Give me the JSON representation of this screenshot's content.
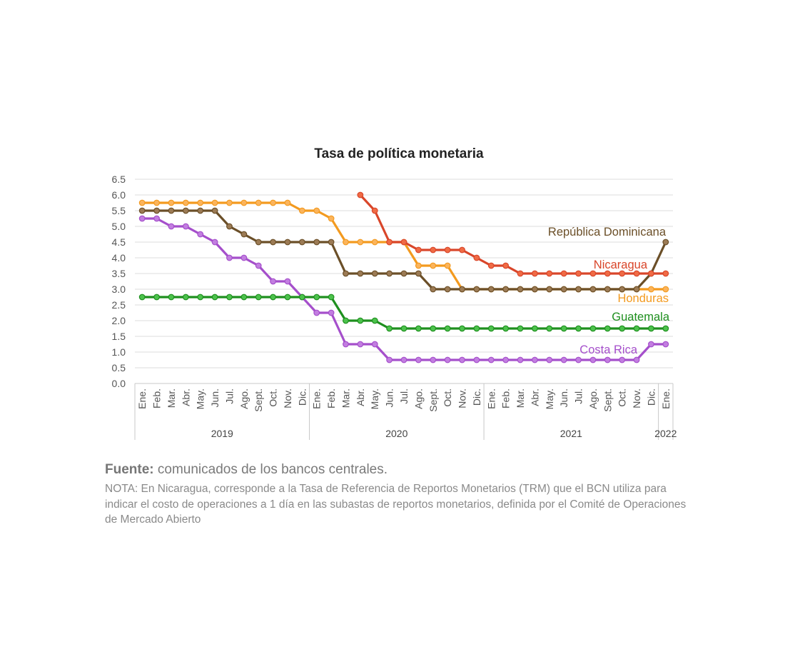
{
  "chart_data": {
    "type": "line",
    "title": "Tasa de política monetaria",
    "xlabel": "",
    "ylabel": "",
    "ylim": [
      0,
      6.5
    ],
    "yticks": [
      "0.0",
      "0.5",
      "1.0",
      "1.5",
      "2.0",
      "2.5",
      "3.0",
      "3.5",
      "4.0",
      "4.5",
      "5.0",
      "5.5",
      "6.0",
      "6.5"
    ],
    "grid": true,
    "categories": [
      "Ene.",
      "Feb.",
      "Mar.",
      "Abr.",
      "May.",
      "Jun.",
      "Jul.",
      "Ago.",
      "Sept.",
      "Oct.",
      "Nov.",
      "Dic.",
      "Ene.",
      "Feb.",
      "Mar.",
      "Abr.",
      "May.",
      "Jun.",
      "Jul.",
      "Ago.",
      "Sept.",
      "Oct.",
      "Nov.",
      "Dic.",
      "Ene.",
      "Feb.",
      "Mar.",
      "Abr.",
      "May.",
      "Jun.",
      "Jul.",
      "Ago.",
      "Sept.",
      "Oct.",
      "Nov.",
      "Dic.",
      "Ene."
    ],
    "years": [
      {
        "label": "2019",
        "start": 0,
        "end": 11
      },
      {
        "label": "2020",
        "start": 12,
        "end": 23
      },
      {
        "label": "2021",
        "start": 24,
        "end": 35
      },
      {
        "label": "2022",
        "start": 36,
        "end": 36
      }
    ],
    "series": [
      {
        "name": "Honduras",
        "color": "#F39A1F",
        "marker": "#FBB45C",
        "values": [
          5.75,
          5.75,
          5.75,
          5.75,
          5.75,
          5.75,
          5.75,
          5.75,
          5.75,
          5.75,
          5.75,
          5.5,
          5.5,
          5.25,
          4.5,
          4.5,
          4.5,
          4.5,
          4.5,
          3.75,
          3.75,
          3.75,
          3.0,
          3.0,
          3.0,
          3.0,
          3.0,
          3.0,
          3.0,
          3.0,
          3.0,
          3.0,
          3.0,
          3.0,
          3.0,
          3.0,
          3.0
        ]
      },
      {
        "name": "República Dominicana",
        "color": "#6B4F28",
        "marker": "#9C7B55",
        "values": [
          5.5,
          5.5,
          5.5,
          5.5,
          5.5,
          5.5,
          5.0,
          4.75,
          4.5,
          4.5,
          4.5,
          4.5,
          4.5,
          4.5,
          3.5,
          3.5,
          3.5,
          3.5,
          3.5,
          3.5,
          3.0,
          3.0,
          3.0,
          3.0,
          3.0,
          3.0,
          3.0,
          3.0,
          3.0,
          3.0,
          3.0,
          3.0,
          3.0,
          3.0,
          3.0,
          3.5,
          4.5
        ]
      },
      {
        "name": "Costa Rica",
        "color": "#A54FCB",
        "marker": "#C27EE0",
        "values": [
          5.25,
          5.25,
          5.0,
          5.0,
          4.75,
          4.5,
          4.0,
          4.0,
          3.75,
          3.25,
          3.25,
          2.75,
          2.25,
          2.25,
          1.25,
          1.25,
          1.25,
          0.75,
          0.75,
          0.75,
          0.75,
          0.75,
          0.75,
          0.75,
          0.75,
          0.75,
          0.75,
          0.75,
          0.75,
          0.75,
          0.75,
          0.75,
          0.75,
          0.75,
          0.75,
          1.25,
          1.25
        ]
      },
      {
        "name": "Guatemala",
        "color": "#1E8F1E",
        "marker": "#4CC24C",
        "values": [
          2.75,
          2.75,
          2.75,
          2.75,
          2.75,
          2.75,
          2.75,
          2.75,
          2.75,
          2.75,
          2.75,
          2.75,
          2.75,
          2.75,
          2.0,
          2.0,
          2.0,
          1.75,
          1.75,
          1.75,
          1.75,
          1.75,
          1.75,
          1.75,
          1.75,
          1.75,
          1.75,
          1.75,
          1.75,
          1.75,
          1.75,
          1.75,
          1.75,
          1.75,
          1.75,
          1.75,
          1.75
        ]
      },
      {
        "name": "Nicaragua",
        "color": "#D9462A",
        "marker": "#F06B45",
        "values": [
          null,
          null,
          null,
          null,
          null,
          null,
          null,
          null,
          null,
          null,
          null,
          null,
          null,
          null,
          null,
          6.0,
          5.5,
          4.5,
          4.5,
          4.25,
          4.25,
          4.25,
          4.25,
          4.0,
          3.75,
          3.75,
          3.5,
          3.5,
          3.5,
          3.5,
          3.5,
          3.5,
          3.5,
          3.5,
          3.5,
          3.5,
          3.5
        ]
      }
    ]
  },
  "notes": {
    "source_label": "Fuente:",
    "source_text": " comunicados de los bancos centrales.",
    "note_text": "NOTA: En Nicaragua, corresponde a la Tasa de Referencia de Reportos Monetarios (TRM) que el BCN utiliza para indicar el costo de operaciones a 1 día en las subastas de reportos monetarios, definida por el Comité de Operaciones de Mercado Abierto"
  }
}
